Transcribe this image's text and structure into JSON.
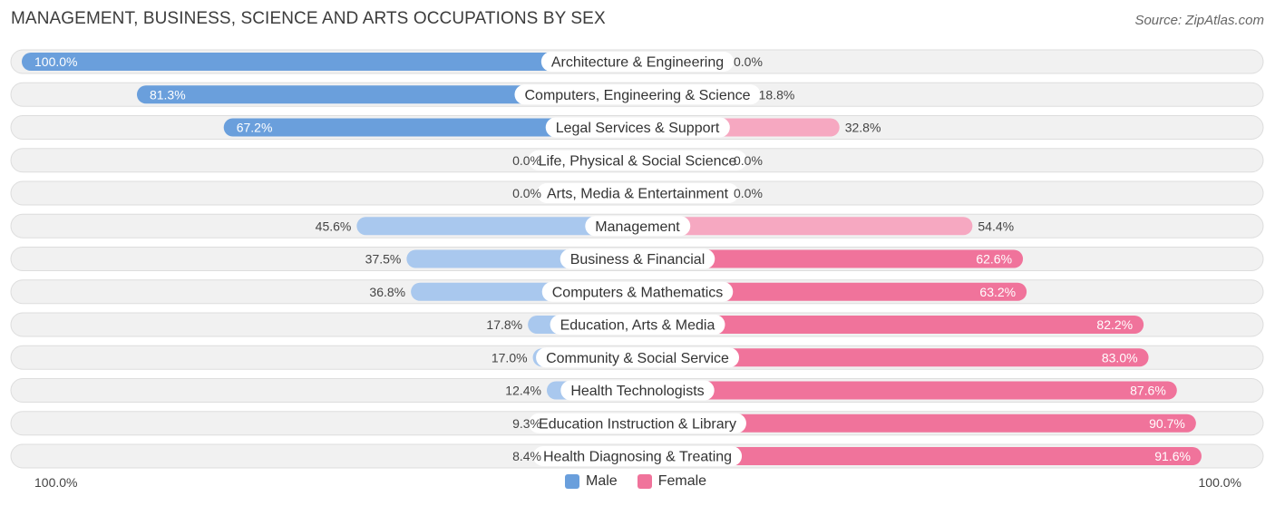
{
  "chart_data": {
    "type": "bar",
    "orientation": "horizontal-diverging",
    "title": "MANAGEMENT, BUSINESS, SCIENCE AND ARTS OCCUPATIONS BY SEX",
    "source": "Source: ZipAtlas.com",
    "categories": [
      "Architecture & Engineering",
      "Computers, Engineering & Science",
      "Legal Services & Support",
      "Life, Physical & Social Science",
      "Arts, Media & Entertainment",
      "Management",
      "Business & Financial",
      "Computers & Mathematics",
      "Education, Arts & Media",
      "Community & Social Service",
      "Health Technologists",
      "Education Instruction & Library",
      "Health Diagnosing & Treating"
    ],
    "series": [
      {
        "name": "Male",
        "values": [
          100.0,
          81.3,
          67.2,
          0.0,
          0.0,
          45.6,
          37.5,
          36.8,
          17.8,
          17.0,
          12.4,
          9.3,
          8.4
        ],
        "labels": [
          "100.0%",
          "81.3%",
          "67.2%",
          "0.0%",
          "0.0%",
          "45.6%",
          "37.5%",
          "36.8%",
          "17.8%",
          "17.0%",
          "12.4%",
          "9.3%",
          "8.4%"
        ]
      },
      {
        "name": "Female",
        "values": [
          0.0,
          18.8,
          32.8,
          0.0,
          0.0,
          54.4,
          62.6,
          63.2,
          82.2,
          83.0,
          87.6,
          90.7,
          91.6
        ],
        "labels": [
          "0.0%",
          "18.8%",
          "32.8%",
          "0.0%",
          "0.0%",
          "54.4%",
          "62.6%",
          "63.2%",
          "82.2%",
          "83.0%",
          "87.6%",
          "90.7%",
          "91.6%"
        ]
      }
    ],
    "axis_left_label": "100.0%",
    "axis_right_label": "100.0%",
    "xlim": [
      0,
      100
    ],
    "legend": [
      "Male",
      "Female"
    ],
    "legend_position": "bottom-center",
    "colors": {
      "male_dark": "#6a9fdc",
      "male_light": "#a9c8ee",
      "female_dark": "#f0739b",
      "female_light": "#f6a8c1",
      "row_bg": "#f1f1f1",
      "row_border": "#dddddd",
      "label_text": "#333333"
    }
  }
}
